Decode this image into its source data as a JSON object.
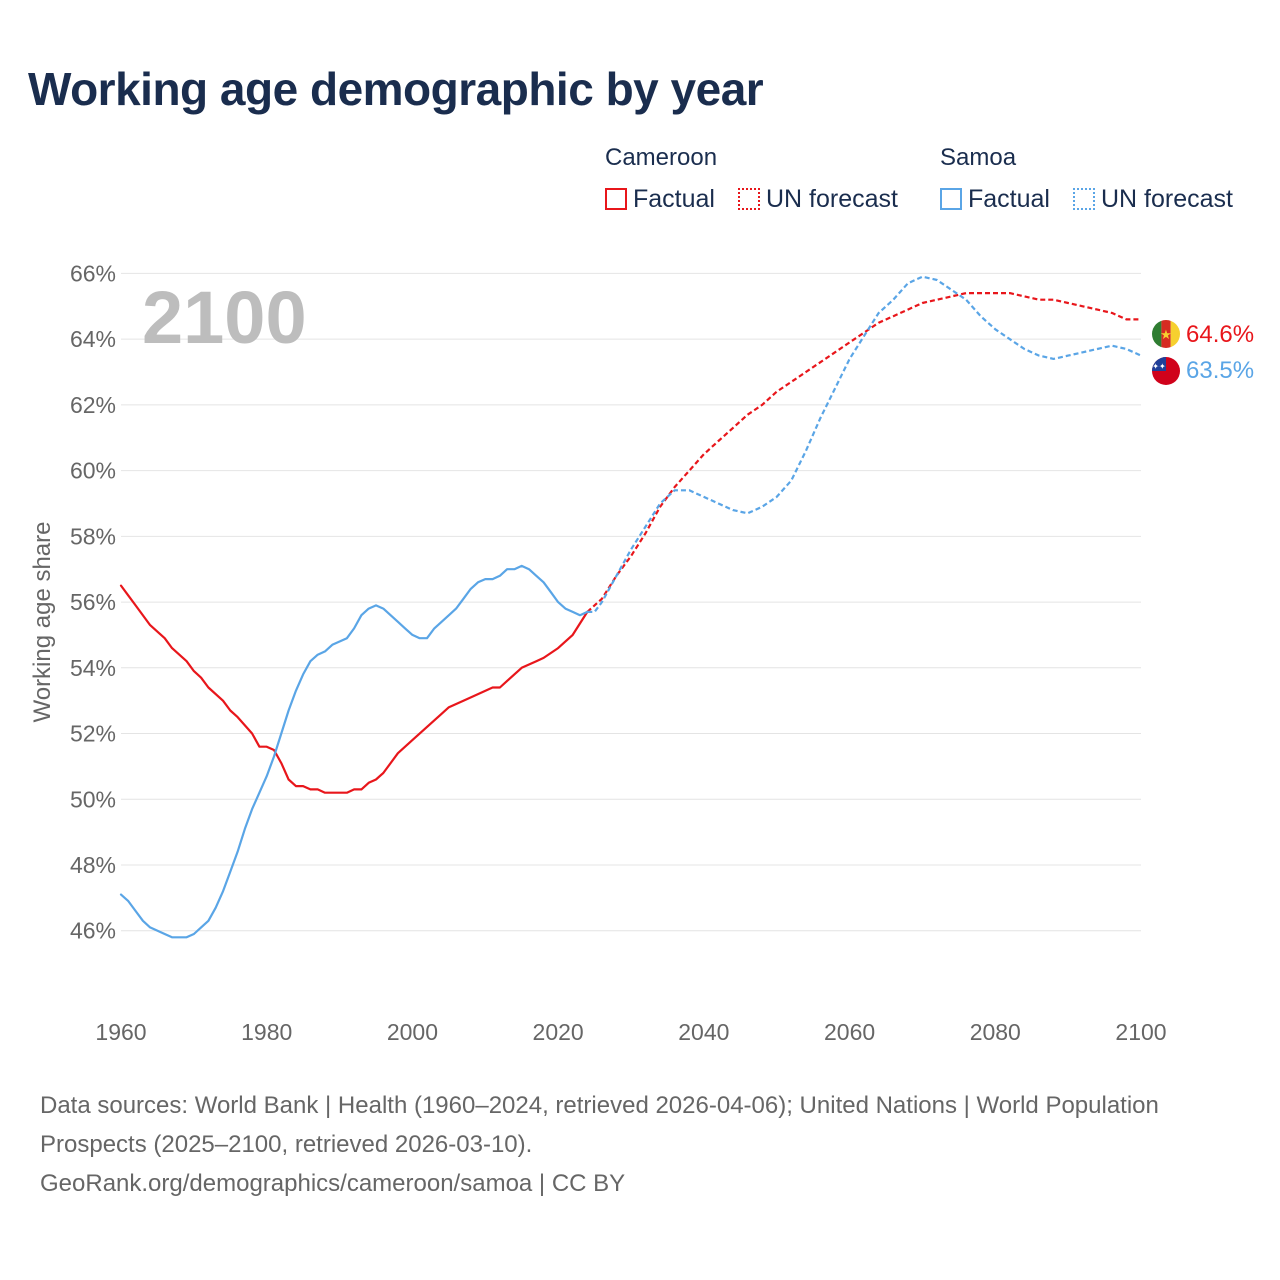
{
  "title": "Working age demographic by year",
  "legend": {
    "groups": [
      {
        "name": "Cameroon",
        "factual_label": "Factual",
        "forecast_label": "UN forecast",
        "color": "#e8161b"
      },
      {
        "name": "Samoa",
        "factual_label": "Factual",
        "forecast_label": "UN forecast",
        "color": "#5aa5e6"
      }
    ]
  },
  "year_watermark": "2100",
  "end_labels": {
    "cameroon": "64.6%",
    "samoa": "63.5%"
  },
  "flags": {
    "cameroon": "cameroon-flag-icon",
    "samoa": "samoa-flag-icon"
  },
  "footer": {
    "sources": "Data sources: World Bank | Health (1960–2024, retrieved 2026-04-06); United Nations | World Population Prospects (2025–2100, retrieved 2026-03-10).",
    "link": "GeoRank.org/demographics/cameroon/samoa | CC BY"
  },
  "chart_data": {
    "type": "line",
    "title": "Working age demographic by year",
    "xlabel": "",
    "ylabel": "Working age share",
    "xlim": [
      1960,
      2100
    ],
    "ylim": [
      44.5,
      66.5
    ],
    "x_ticks": [
      1960,
      1980,
      2000,
      2020,
      2040,
      2060,
      2080,
      2100
    ],
    "x_tick_labels": [
      "1960",
      "1980",
      "2000",
      "2020",
      "2040",
      "2060",
      "2080",
      "2100"
    ],
    "y_ticks": [
      46,
      48,
      50,
      52,
      54,
      56,
      58,
      60,
      62,
      64,
      66
    ],
    "y_tick_labels": [
      "46%",
      "48%",
      "50%",
      "52%",
      "54%",
      "56%",
      "58%",
      "60%",
      "62%",
      "64%",
      "66%"
    ],
    "grid": true,
    "factual_range": [
      1960,
      2024
    ],
    "forecast_range": [
      2024,
      2100
    ],
    "series": [
      {
        "name": "Cameroon",
        "color": "#e8161b",
        "points": [
          [
            1960,
            56.5
          ],
          [
            1962,
            55.9
          ],
          [
            1964,
            55.3
          ],
          [
            1966,
            54.9
          ],
          [
            1967,
            54.6
          ],
          [
            1969,
            54.2
          ],
          [
            1970,
            53.9
          ],
          [
            1971,
            53.7
          ],
          [
            1972,
            53.4
          ],
          [
            1974,
            53.0
          ],
          [
            1975,
            52.7
          ],
          [
            1976,
            52.5
          ],
          [
            1978,
            52.0
          ],
          [
            1979,
            51.6
          ],
          [
            1980,
            51.6
          ],
          [
            1981,
            51.5
          ],
          [
            1982,
            51.1
          ],
          [
            1983,
            50.6
          ],
          [
            1984,
            50.4
          ],
          [
            1985,
            50.4
          ],
          [
            1986,
            50.3
          ],
          [
            1987,
            50.3
          ],
          [
            1988,
            50.2
          ],
          [
            1990,
            50.2
          ],
          [
            1991,
            50.2
          ],
          [
            1992,
            50.3
          ],
          [
            1993,
            50.3
          ],
          [
            1994,
            50.5
          ],
          [
            1995,
            50.6
          ],
          [
            1996,
            50.8
          ],
          [
            1997,
            51.1
          ],
          [
            1998,
            51.4
          ],
          [
            2000,
            51.8
          ],
          [
            2002,
            52.2
          ],
          [
            2004,
            52.6
          ],
          [
            2005,
            52.8
          ],
          [
            2007,
            53.0
          ],
          [
            2009,
            53.2
          ],
          [
            2011,
            53.4
          ],
          [
            2012,
            53.4
          ],
          [
            2013,
            53.6
          ],
          [
            2015,
            54.0
          ],
          [
            2017,
            54.2
          ],
          [
            2018,
            54.3
          ],
          [
            2020,
            54.6
          ],
          [
            2022,
            55.0
          ],
          [
            2024,
            55.7
          ],
          [
            2026,
            56.1
          ],
          [
            2028,
            56.8
          ],
          [
            2030,
            57.4
          ],
          [
            2032,
            58.1
          ],
          [
            2034,
            58.9
          ],
          [
            2036,
            59.5
          ],
          [
            2038,
            60.0
          ],
          [
            2040,
            60.5
          ],
          [
            2042,
            60.9
          ],
          [
            2044,
            61.3
          ],
          [
            2046,
            61.7
          ],
          [
            2048,
            62.0
          ],
          [
            2050,
            62.4
          ],
          [
            2052,
            62.7
          ],
          [
            2054,
            63.0
          ],
          [
            2056,
            63.3
          ],
          [
            2058,
            63.6
          ],
          [
            2060,
            63.9
          ],
          [
            2062,
            64.2
          ],
          [
            2064,
            64.5
          ],
          [
            2066,
            64.7
          ],
          [
            2068,
            64.9
          ],
          [
            2070,
            65.1
          ],
          [
            2072,
            65.2
          ],
          [
            2074,
            65.3
          ],
          [
            2076,
            65.4
          ],
          [
            2078,
            65.4
          ],
          [
            2080,
            65.4
          ],
          [
            2082,
            65.4
          ],
          [
            2084,
            65.3
          ],
          [
            2086,
            65.2
          ],
          [
            2088,
            65.2
          ],
          [
            2090,
            65.1
          ],
          [
            2092,
            65.0
          ],
          [
            2094,
            64.9
          ],
          [
            2096,
            64.8
          ],
          [
            2098,
            64.6
          ],
          [
            2100,
            64.6
          ]
        ]
      },
      {
        "name": "Samoa",
        "color": "#5aa5e6",
        "points": [
          [
            1960,
            47.1
          ],
          [
            1961,
            46.9
          ],
          [
            1962,
            46.6
          ],
          [
            1963,
            46.3
          ],
          [
            1964,
            46.1
          ],
          [
            1966,
            45.9
          ],
          [
            1967,
            45.8
          ],
          [
            1968,
            45.8
          ],
          [
            1969,
            45.8
          ],
          [
            1970,
            45.9
          ],
          [
            1971,
            46.1
          ],
          [
            1972,
            46.3
          ],
          [
            1973,
            46.7
          ],
          [
            1974,
            47.2
          ],
          [
            1975,
            47.8
          ],
          [
            1976,
            48.4
          ],
          [
            1977,
            49.1
          ],
          [
            1978,
            49.7
          ],
          [
            1979,
            50.2
          ],
          [
            1980,
            50.7
          ],
          [
            1981,
            51.3
          ],
          [
            1982,
            52.0
          ],
          [
            1983,
            52.7
          ],
          [
            1984,
            53.3
          ],
          [
            1985,
            53.8
          ],
          [
            1986,
            54.2
          ],
          [
            1987,
            54.4
          ],
          [
            1988,
            54.5
          ],
          [
            1989,
            54.7
          ],
          [
            1990,
            54.8
          ],
          [
            1991,
            54.9
          ],
          [
            1992,
            55.2
          ],
          [
            1993,
            55.6
          ],
          [
            1994,
            55.8
          ],
          [
            1995,
            55.9
          ],
          [
            1996,
            55.8
          ],
          [
            1997,
            55.6
          ],
          [
            1998,
            55.4
          ],
          [
            1999,
            55.2
          ],
          [
            2000,
            55.0
          ],
          [
            2001,
            54.9
          ],
          [
            2002,
            54.9
          ],
          [
            2003,
            55.2
          ],
          [
            2004,
            55.4
          ],
          [
            2005,
            55.6
          ],
          [
            2006,
            55.8
          ],
          [
            2007,
            56.1
          ],
          [
            2008,
            56.4
          ],
          [
            2009,
            56.6
          ],
          [
            2010,
            56.7
          ],
          [
            2011,
            56.7
          ],
          [
            2012,
            56.8
          ],
          [
            2013,
            57.0
          ],
          [
            2014,
            57.0
          ],
          [
            2015,
            57.1
          ],
          [
            2016,
            57.0
          ],
          [
            2017,
            56.8
          ],
          [
            2018,
            56.6
          ],
          [
            2019,
            56.3
          ],
          [
            2020,
            56.0
          ],
          [
            2021,
            55.8
          ],
          [
            2022,
            55.7
          ],
          [
            2023,
            55.6
          ],
          [
            2024,
            55.7
          ],
          [
            2025,
            55.7
          ],
          [
            2026,
            56.0
          ],
          [
            2028,
            56.8
          ],
          [
            2030,
            57.6
          ],
          [
            2032,
            58.3
          ],
          [
            2034,
            59.0
          ],
          [
            2036,
            59.4
          ],
          [
            2038,
            59.4
          ],
          [
            2040,
            59.2
          ],
          [
            2042,
            59.0
          ],
          [
            2044,
            58.8
          ],
          [
            2046,
            58.7
          ],
          [
            2048,
            58.9
          ],
          [
            2050,
            59.2
          ],
          [
            2052,
            59.7
          ],
          [
            2054,
            60.6
          ],
          [
            2056,
            61.6
          ],
          [
            2058,
            62.5
          ],
          [
            2060,
            63.4
          ],
          [
            2062,
            64.1
          ],
          [
            2064,
            64.8
          ],
          [
            2066,
            65.2
          ],
          [
            2068,
            65.7
          ],
          [
            2070,
            65.9
          ],
          [
            2072,
            65.8
          ],
          [
            2074,
            65.5
          ],
          [
            2076,
            65.2
          ],
          [
            2078,
            64.7
          ],
          [
            2080,
            64.3
          ],
          [
            2082,
            64.0
          ],
          [
            2084,
            63.7
          ],
          [
            2086,
            63.5
          ],
          [
            2088,
            63.4
          ],
          [
            2090,
            63.5
          ],
          [
            2092,
            63.6
          ],
          [
            2094,
            63.7
          ],
          [
            2096,
            63.8
          ],
          [
            2098,
            63.7
          ],
          [
            2100,
            63.5
          ]
        ]
      }
    ]
  }
}
